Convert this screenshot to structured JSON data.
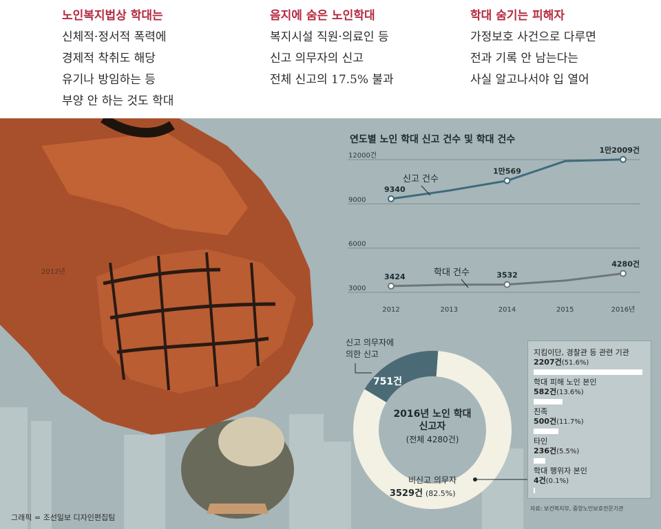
{
  "header": {
    "columns": [
      {
        "title": "노인복지법상 학대는",
        "lines": [
          "신체적·정서적 폭력에",
          "경제적 착취도 해당",
          "유기나 방임하는 등",
          "부양 안 하는 것도 학대"
        ]
      },
      {
        "title": "음지에 숨은 노인학대",
        "lines": [
          "복지시설 직원·의료인 등",
          "신고 의무자의 신고",
          "전체 신고의 17.5% 불과"
        ]
      },
      {
        "title": "학대 숨기는 피해자",
        "lines": [
          "가정보호 사건으로 다루면",
          "전과 기록 안 남는다는",
          "사실 알고나서야 입 열어"
        ]
      }
    ]
  },
  "illustration": {
    "year_tag": "2012년"
  },
  "colors": {
    "report_line": "#3f6b7a",
    "abuse_line": "#6e7778",
    "donut_dark": "#4a6b75",
    "donut_light": "#f3f1e4",
    "accent_red": "#b42a3f"
  },
  "chart_data": [
    {
      "type": "line",
      "title": "연도별 노인 학대 신고 건수 및 학대 건수",
      "x": [
        "2012",
        "2013",
        "2014",
        "2015",
        "2016년"
      ],
      "y_ticks": [
        "12000건",
        "9000",
        "6000",
        "3000"
      ],
      "ylim": [
        3000,
        12000
      ],
      "series": [
        {
          "name": "신고 건수",
          "values": [
            9340,
            9900,
            10569,
            11900,
            12009
          ],
          "labels": [
            "9340",
            "",
            "1만569",
            "",
            "1만2009건"
          ]
        },
        {
          "name": "학대 건수",
          "values": [
            3424,
            3520,
            3532,
            3800,
            4280
          ],
          "labels": [
            "3424",
            "",
            "3532",
            "",
            "4280건"
          ]
        }
      ]
    },
    {
      "type": "pie",
      "title": "2016년 노인 학대 신고자",
      "subtitle": "(전체 4280건)",
      "slices": [
        {
          "name": "신고 의무자에 의한 신고",
          "value": 751,
          "label": "751건"
        },
        {
          "name": "비신고 의무자",
          "value": 3529,
          "label": "3529건",
          "pct": "(82.5%)"
        }
      ],
      "breakdown": [
        {
          "name": "지킴이단, 경찰관 등 관련 기관",
          "value": 2207,
          "label": "2207건",
          "pct": "(51.6%)"
        },
        {
          "name": "학대 피해 노인 본인",
          "value": 582,
          "label": "582건",
          "pct": "(13.6%)"
        },
        {
          "name": "친족",
          "value": 500,
          "label": "500건",
          "pct": "(11.7%)"
        },
        {
          "name": "타인",
          "value": 236,
          "label": "236건",
          "pct": "(5.5%)"
        },
        {
          "name": "학대 행위자 본인",
          "value": 4,
          "label": "4건",
          "pct": "(0.1%)"
        }
      ]
    }
  ],
  "footer": {
    "credit": "그래픽 = 조선일보 디자인편집팀",
    "source": "자료: 보건복지부, 중앙노인보호전문기관"
  }
}
